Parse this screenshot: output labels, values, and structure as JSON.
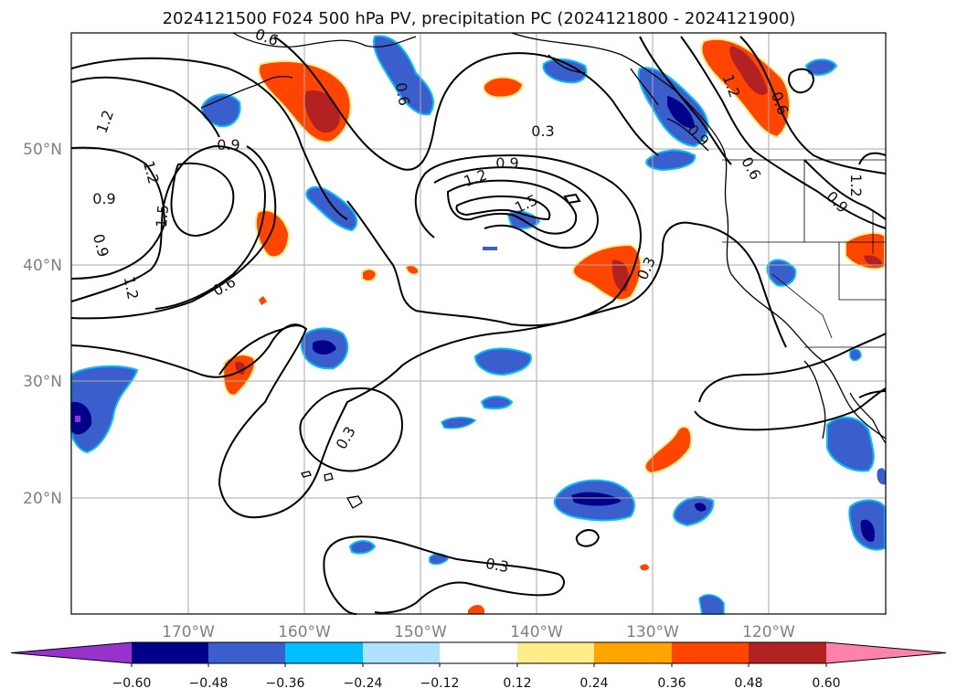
{
  "title": "2024121500 F024 500 hPa PV, precipitation PC (2024121800 - 2024121900)",
  "map": {
    "lon_ticks": [
      "170°W",
      "160°W",
      "150°W",
      "140°W",
      "130°W",
      "120°W"
    ],
    "lat_ticks": [
      "50°N",
      "40°N",
      "30°N",
      "20°N"
    ],
    "grid": true,
    "contour_color": "#000000",
    "contour_labels": [
      {
        "id": "cl-1",
        "text": "0.3"
      },
      {
        "id": "cl-2",
        "text": "0.9"
      },
      {
        "id": "cl-3",
        "text": "1.2"
      },
      {
        "id": "cl-4",
        "text": "1.5"
      },
      {
        "id": "cl-5",
        "text": "0.9"
      },
      {
        "id": "cl-6",
        "text": "1.2"
      },
      {
        "id": "cl-7",
        "text": "1.5"
      },
      {
        "id": "cl-8",
        "text": "0.9"
      },
      {
        "id": "cl-9",
        "text": "0.9"
      },
      {
        "id": "cl-10",
        "text": "1.2"
      },
      {
        "id": "cl-11",
        "text": "0.6"
      },
      {
        "id": "cl-12",
        "text": "1.2"
      },
      {
        "id": "cl-13",
        "text": "0.6"
      },
      {
        "id": "cl-14",
        "text": "0.3"
      },
      {
        "id": "cl-15",
        "text": "0.3"
      },
      {
        "id": "cl-16",
        "text": "0.3"
      },
      {
        "id": "cl-17",
        "text": "0.6"
      },
      {
        "id": "cl-18",
        "text": "1.2"
      },
      {
        "id": "cl-19",
        "text": "0.9"
      },
      {
        "id": "cl-20",
        "text": "0.6"
      },
      {
        "id": "cl-21",
        "text": "1.2"
      },
      {
        "id": "cl-22",
        "text": "0.9"
      },
      {
        "id": "cl-23",
        "text": "0.6"
      }
    ]
  },
  "colorbar": {
    "ticks": [
      "−0.60",
      "−0.48",
      "−0.36",
      "−0.24",
      "−0.12",
      "0.12",
      "0.24",
      "0.36",
      "0.48",
      "0.60"
    ],
    "colors": [
      "#9932cc",
      "#00008b",
      "#3a5fcd",
      "#00bfff",
      "#b0e2ff",
      "#ffffff",
      "#ffec8b",
      "#ffa500",
      "#ff4500",
      "#b22222",
      "#ff82ab"
    ]
  },
  "legend_colors": {
    "neg_strong": "#00008b",
    "neg": "#3a5fcd",
    "neg_light": "#00bfff",
    "pos": "#ff4500",
    "pos_strong": "#b22222",
    "pos_light": "#ffa500",
    "pos_pale": "#ffec8b",
    "extreme_neg": "#9932cc"
  }
}
